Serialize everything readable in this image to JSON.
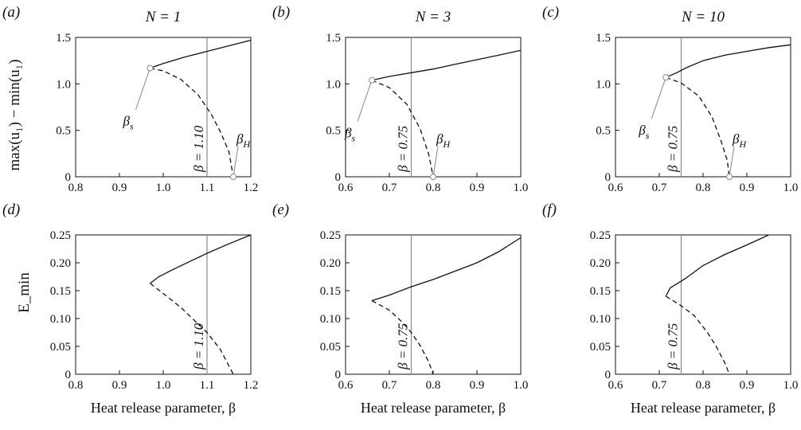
{
  "figure": {
    "x_axis_label": "Heat release parameter, β",
    "top_row_ylabel": "max(u₁) − min(u₁)",
    "bottom_row_ylabel": "E_min"
  },
  "chart_data": [
    {
      "panel": "(a)",
      "type": "line",
      "title": "N = 1",
      "xlim": [
        0.8,
        1.2
      ],
      "ylim": [
        0,
        1.5
      ],
      "xticks": [
        "0.8",
        "0.9",
        "1.0",
        "1.1",
        "1.2"
      ],
      "yticks": [
        "0",
        "0.5",
        "1.0",
        "1.5"
      ],
      "series": [
        {
          "style": "solid",
          "x": [
            0.97,
            1.0,
            1.05,
            1.1,
            1.15,
            1.2
          ],
          "y": [
            1.17,
            1.22,
            1.29,
            1.35,
            1.41,
            1.47
          ]
        },
        {
          "style": "dashed",
          "x": [
            0.97,
            1.0,
            1.04,
            1.08,
            1.11,
            1.13,
            1.15,
            1.16
          ],
          "y": [
            1.17,
            1.14,
            1.05,
            0.88,
            0.67,
            0.49,
            0.27,
            0
          ]
        }
      ],
      "vline": {
        "x": 1.1,
        "label": "β = 1.10"
      },
      "points": [
        {
          "label": "β",
          "sub": "s",
          "x": 0.97,
          "y": 1.17
        },
        {
          "label": "β",
          "sub": "H",
          "x": 1.16,
          "y": 0
        }
      ]
    },
    {
      "panel": "(b)",
      "type": "line",
      "title": "N = 3",
      "xlim": [
        0.6,
        1.0
      ],
      "ylim": [
        0,
        1.5
      ],
      "xticks": [
        "0.6",
        "0.7",
        "0.8",
        "0.9",
        "1.0"
      ],
      "yticks": [
        "0",
        "0.5",
        "1.0",
        "1.5"
      ],
      "series": [
        {
          "style": "solid",
          "x": [
            0.66,
            0.7,
            0.75,
            0.8,
            0.85,
            0.9,
            0.95,
            1.0
          ],
          "y": [
            1.04,
            1.08,
            1.12,
            1.16,
            1.21,
            1.26,
            1.31,
            1.36
          ]
        },
        {
          "style": "dashed",
          "x": [
            0.66,
            0.7,
            0.74,
            0.77,
            0.79,
            0.8
          ],
          "y": [
            1.04,
            0.96,
            0.78,
            0.52,
            0.24,
            0
          ]
        }
      ],
      "vline": {
        "x": 0.75,
        "label": "β = 0.75"
      },
      "points": [
        {
          "label": "β",
          "sub": "s",
          "x": 0.66,
          "y": 1.04
        },
        {
          "label": "β",
          "sub": "H",
          "x": 0.8,
          "y": 0
        }
      ]
    },
    {
      "panel": "(c)",
      "type": "line",
      "title": "N = 10",
      "xlim": [
        0.6,
        1.0
      ],
      "ylim": [
        0,
        1.5
      ],
      "xticks": [
        "0.6",
        "0.7",
        "0.8",
        "0.9",
        "1.0"
      ],
      "yticks": [
        "0",
        "0.5",
        "1.0",
        "1.5"
      ],
      "series": [
        {
          "style": "solid",
          "x": [
            0.715,
            0.74,
            0.76,
            0.8,
            0.85,
            0.9,
            0.95,
            1.0
          ],
          "y": [
            1.07,
            1.12,
            1.17,
            1.25,
            1.31,
            1.35,
            1.39,
            1.42
          ]
        },
        {
          "style": "dashed",
          "x": [
            0.715,
            0.75,
            0.79,
            0.82,
            0.84,
            0.855,
            0.86
          ],
          "y": [
            1.07,
            1.01,
            0.87,
            0.65,
            0.4,
            0.18,
            0
          ]
        }
      ],
      "vline": {
        "x": 0.75,
        "label": "β = 0.75"
      },
      "points": [
        {
          "label": "β",
          "sub": "s",
          "x": 0.715,
          "y": 1.07
        },
        {
          "label": "β",
          "sub": "H",
          "x": 0.86,
          "y": 0
        }
      ]
    },
    {
      "panel": "(d)",
      "type": "line",
      "title": "",
      "xlim": [
        0.8,
        1.2
      ],
      "ylim": [
        0,
        0.25
      ],
      "xticks": [
        "0.8",
        "0.9",
        "1.0",
        "1.1",
        "1.2"
      ],
      "yticks": [
        "0",
        "0.05",
        "0.10",
        "0.15",
        "0.20",
        "0.25"
      ],
      "series": [
        {
          "style": "solid",
          "x": [
            0.97,
            0.99,
            1.02,
            1.06,
            1.1,
            1.15,
            1.2
          ],
          "y": [
            0.163,
            0.175,
            0.187,
            0.202,
            0.217,
            0.234,
            0.25
          ]
        },
        {
          "style": "dashed",
          "x": [
            0.97,
            1.0,
            1.04,
            1.08,
            1.1,
            1.13,
            1.16
          ],
          "y": [
            0.163,
            0.145,
            0.12,
            0.09,
            0.075,
            0.045,
            0
          ]
        }
      ],
      "vline": {
        "x": 1.1,
        "label": "β = 1.10"
      }
    },
    {
      "panel": "(e)",
      "type": "line",
      "title": "",
      "xlim": [
        0.6,
        1.0
      ],
      "ylim": [
        0,
        0.25
      ],
      "xticks": [
        "0.6",
        "0.7",
        "0.8",
        "0.9",
        "1.0"
      ],
      "yticks": [
        "0",
        "0.05",
        "0.10",
        "0.15",
        "0.20",
        "0.25"
      ],
      "series": [
        {
          "style": "solid",
          "x": [
            0.66,
            0.7,
            0.75,
            0.8,
            0.85,
            0.9,
            0.95,
            1.0
          ],
          "y": [
            0.132,
            0.142,
            0.157,
            0.17,
            0.185,
            0.2,
            0.22,
            0.245
          ]
        },
        {
          "style": "dashed",
          "x": [
            0.66,
            0.7,
            0.73,
            0.75,
            0.77,
            0.79,
            0.8
          ],
          "y": [
            0.132,
            0.115,
            0.093,
            0.075,
            0.052,
            0.022,
            0
          ]
        }
      ],
      "vline": {
        "x": 0.75,
        "label": "β = 0.75"
      }
    },
    {
      "panel": "(f)",
      "type": "line",
      "title": "",
      "xlim": [
        0.6,
        1.0
      ],
      "ylim": [
        0,
        0.25
      ],
      "xticks": [
        "0.6",
        "0.7",
        "0.8",
        "0.9",
        "1.0"
      ],
      "yticks": [
        "0",
        "0.05",
        "0.10",
        "0.15",
        "0.20",
        "0.25"
      ],
      "series": [
        {
          "style": "solid",
          "x": [
            0.715,
            0.725,
            0.74,
            0.76,
            0.8,
            0.85,
            0.9,
            0.95
          ],
          "y": [
            0.14,
            0.155,
            0.162,
            0.172,
            0.195,
            0.215,
            0.232,
            0.25
          ]
        },
        {
          "style": "dashed",
          "x": [
            0.715,
            0.75,
            0.78,
            0.81,
            0.83,
            0.85,
            0.86
          ],
          "y": [
            0.14,
            0.123,
            0.105,
            0.075,
            0.05,
            0.02,
            0
          ]
        }
      ],
      "vline": {
        "x": 0.75,
        "label": "β = 0.75"
      }
    }
  ]
}
